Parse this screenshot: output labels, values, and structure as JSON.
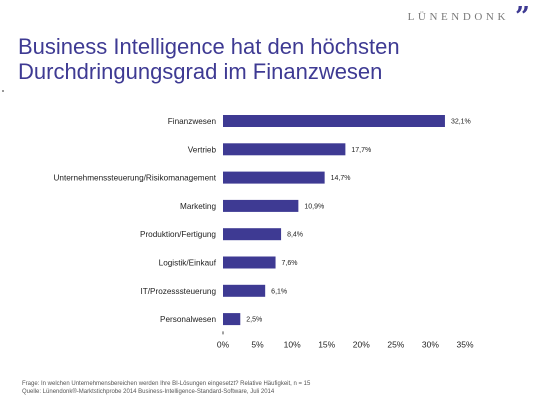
{
  "logo": {
    "text": "LÜNENDONK",
    "mark": "”"
  },
  "title": {
    "line1": "Business Intelligence hat den höchsten",
    "line2": "Durchdringungsgrad im Finanzwesen"
  },
  "chart_data": {
    "type": "bar",
    "orientation": "horizontal",
    "categories": [
      "Finanzwesen",
      "Vertrieb",
      "Unternehmenssteuerung/Risikomanagement",
      "Marketing",
      "Produktion/Fertigung",
      "Logistik/Einkauf",
      "IT/Prozesssteuerung",
      "Personalwesen"
    ],
    "values": [
      32.1,
      17.7,
      14.7,
      10.9,
      8.4,
      7.6,
      6.1,
      2.5
    ],
    "value_labels": [
      "32,1%",
      "17,7%",
      "14,7%",
      "10,9%",
      "8,4%",
      "7,6%",
      "6,1%",
      "2,5%"
    ],
    "xlim": [
      0,
      35
    ],
    "xticks": [
      0,
      5,
      10,
      15,
      20,
      25,
      30,
      35
    ],
    "xtick_labels": [
      "0%",
      "5%",
      "10%",
      "15%",
      "20%",
      "25%",
      "30%",
      "35%"
    ],
    "bar_color": "#3e3a93",
    "grid": false,
    "legend": "none"
  },
  "footer": {
    "question": "Frage: In welchen Unternehmensbereichen werden Ihre BI-Lösungen eingesetzt? Relative Häufigkeit, n = 15",
    "source": "Quelle: Lünendonk®-Marktstichprobe 2014 Business-Intelligence-Standard-Software, Juli 2014"
  }
}
